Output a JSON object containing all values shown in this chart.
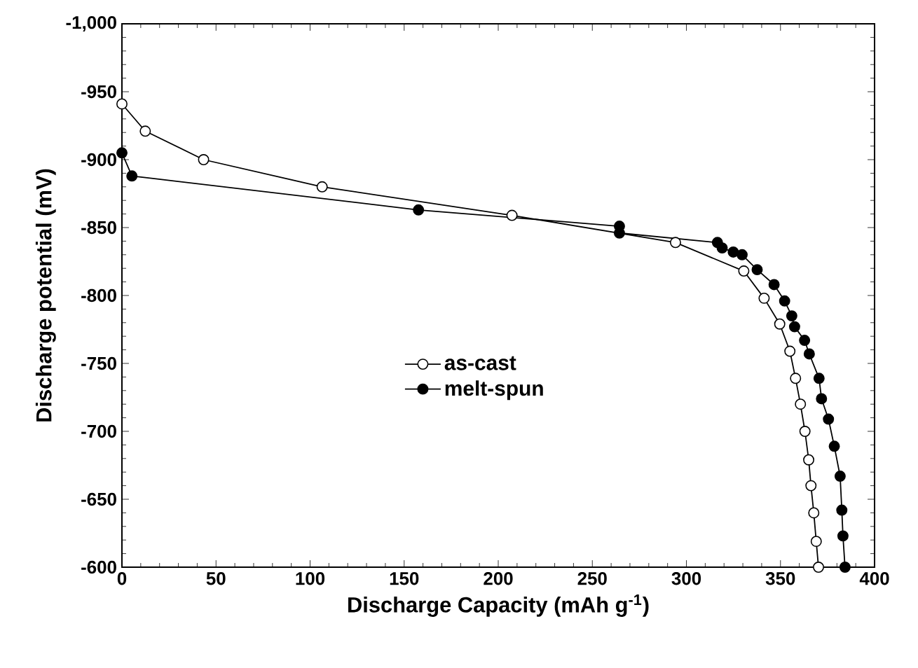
{
  "chart_data": {
    "type": "line",
    "xlabel": "Discharge Capacity (mAh g$^{-1}$)",
    "ylabel": "Discharge potential (mV)",
    "xlim": [
      0,
      400
    ],
    "xticks": [
      0,
      50,
      100,
      150,
      200,
      250,
      300,
      350,
      400
    ],
    "ylim": [
      -600,
      -1000
    ],
    "yticks": [
      {
        "value": -1000,
        "label": "-1,000"
      },
      -950,
      -900,
      -850,
      -800,
      -750,
      -700,
      -650,
      -600
    ],
    "legend": "center",
    "grid": false,
    "line_style": "solid",
    "series": [
      {
        "name": "as-cast",
        "color": "#000000",
        "marker": "circle",
        "x": [
          0,
          12.4,
          43.4,
          106.4,
          207.3,
          294.2,
          330.5,
          341.3,
          349.6,
          355,
          358,
          360.6,
          363,
          365,
          366.2,
          367.7,
          369,
          370.2
        ],
        "values": [
          -941,
          -921,
          -900,
          -880,
          -859,
          -839,
          -818,
          -798,
          -779,
          -759,
          -739,
          -720,
          -700,
          -679,
          -660,
          -640,
          -619,
          -600
        ]
      },
      {
        "name": "melt-spun",
        "color": "#000000",
        "marker": "circle",
        "x": [
          0,
          5.3,
          157.6,
          264.4,
          264.4,
          316.5,
          319,
          324.9,
          329.6,
          337.6,
          346.6,
          352.2,
          356,
          357.5,
          362.8,
          365.3,
          370.5,
          371.8,
          375.5,
          378.6,
          381.7,
          382.6,
          383.2,
          383.9,
          384.3
        ],
        "values": [
          -905,
          -888,
          -863,
          -851,
          -846,
          -839,
          -835,
          -832,
          -830,
          -819,
          -808,
          -796,
          -785,
          -777,
          -767,
          -757,
          -739,
          -724,
          -709,
          -689,
          -667,
          -642,
          -623,
          null,
          -600
        ]
      }
    ]
  }
}
